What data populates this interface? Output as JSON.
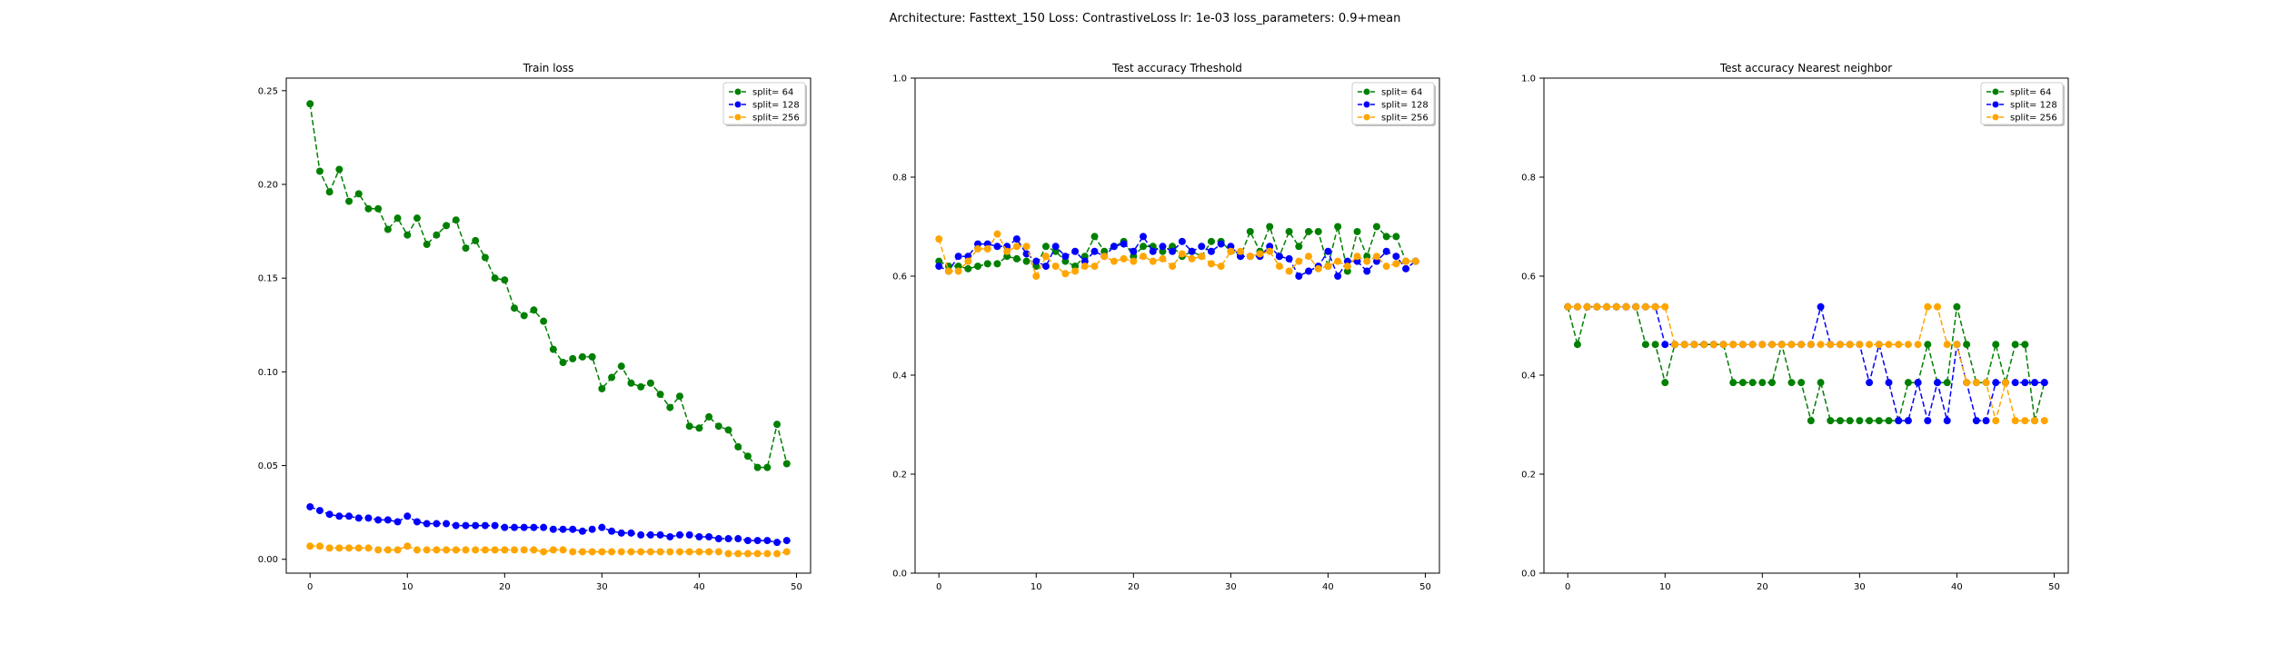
{
  "suptitle": "Architecture: Fasttext_150 Loss: ContrastiveLoss lr: 1e-03 loss_parameters: 0.9+mean",
  "colors": {
    "split64": "#008000",
    "split128": "#0000ff",
    "split256": "#ffa500"
  },
  "chart_data": [
    {
      "type": "line",
      "title": "Train loss",
      "xlabel": "",
      "ylabel": "",
      "xlim": [
        -2.45,
        51.45
      ],
      "ylim": [
        -0.0074,
        0.2567
      ],
      "xticks": [
        0,
        10,
        20,
        30,
        40,
        50
      ],
      "xtick_labels": [
        "0",
        "10",
        "20",
        "30",
        "40",
        "50"
      ],
      "yticks": [
        0.0,
        0.05,
        0.1,
        0.15,
        0.2,
        0.25
      ],
      "ytick_labels": [
        "0.00",
        "0.05",
        "0.10",
        "0.15",
        "0.20",
        "0.25"
      ],
      "legend_position": "top-right",
      "grid": false,
      "x": [
        0,
        1,
        2,
        3,
        4,
        5,
        6,
        7,
        8,
        9,
        10,
        11,
        12,
        13,
        14,
        15,
        16,
        17,
        18,
        19,
        20,
        21,
        22,
        23,
        24,
        25,
        26,
        27,
        28,
        29,
        30,
        31,
        32,
        33,
        34,
        35,
        36,
        37,
        38,
        39,
        40,
        41,
        42,
        43,
        44,
        45,
        46,
        47,
        48,
        49
      ],
      "series": [
        {
          "name": "split= 64",
          "color": "#008000",
          "values": [
            0.243,
            0.207,
            0.196,
            0.208,
            0.191,
            0.195,
            0.187,
            0.187,
            0.176,
            0.182,
            0.173,
            0.182,
            0.168,
            0.173,
            0.178,
            0.181,
            0.166,
            0.17,
            0.161,
            0.15,
            0.149,
            0.134,
            0.13,
            0.133,
            0.127,
            0.112,
            0.105,
            0.107,
            0.108,
            0.108,
            0.091,
            0.097,
            0.103,
            0.094,
            0.092,
            0.094,
            0.088,
            0.081,
            0.087,
            0.071,
            0.07,
            0.076,
            0.071,
            0.069,
            0.06,
            0.055,
            0.049,
            0.049,
            0.072,
            0.051
          ]
        },
        {
          "name": "split= 128",
          "color": "#0000ff",
          "values": [
            0.028,
            0.026,
            0.024,
            0.023,
            0.023,
            0.022,
            0.022,
            0.021,
            0.021,
            0.02,
            0.023,
            0.02,
            0.019,
            0.019,
            0.019,
            0.018,
            0.018,
            0.018,
            0.018,
            0.018,
            0.017,
            0.017,
            0.017,
            0.017,
            0.017,
            0.016,
            0.016,
            0.016,
            0.015,
            0.016,
            0.017,
            0.015,
            0.014,
            0.014,
            0.013,
            0.013,
            0.013,
            0.012,
            0.013,
            0.013,
            0.012,
            0.012,
            0.011,
            0.011,
            0.011,
            0.01,
            0.01,
            0.01,
            0.009,
            0.01
          ]
        },
        {
          "name": "split= 256",
          "color": "#ffa500",
          "values": [
            0.007,
            0.007,
            0.006,
            0.006,
            0.006,
            0.006,
            0.006,
            0.005,
            0.005,
            0.005,
            0.007,
            0.005,
            0.005,
            0.005,
            0.005,
            0.005,
            0.005,
            0.005,
            0.005,
            0.005,
            0.005,
            0.005,
            0.005,
            0.005,
            0.004,
            0.005,
            0.005,
            0.004,
            0.004,
            0.004,
            0.004,
            0.004,
            0.004,
            0.004,
            0.004,
            0.004,
            0.004,
            0.004,
            0.004,
            0.004,
            0.004,
            0.004,
            0.004,
            0.003,
            0.003,
            0.003,
            0.003,
            0.003,
            0.003,
            0.004
          ]
        }
      ]
    },
    {
      "type": "line",
      "title": "Test accuracy Trheshold",
      "xlabel": "",
      "ylabel": "",
      "xlim": [
        -2.45,
        51.45
      ],
      "ylim": [
        0.0,
        1.0
      ],
      "xticks": [
        0,
        10,
        20,
        30,
        40,
        50
      ],
      "xtick_labels": [
        "0",
        "10",
        "20",
        "30",
        "40",
        "50"
      ],
      "yticks": [
        0.0,
        0.2,
        0.4,
        0.6,
        0.8,
        1.0
      ],
      "ytick_labels": [
        "0.0",
        "0.2",
        "0.4",
        "0.6",
        "0.8",
        "1.0"
      ],
      "legend_position": "top-right",
      "grid": false,
      "x": [
        0,
        1,
        2,
        3,
        4,
        5,
        6,
        7,
        8,
        9,
        10,
        11,
        12,
        13,
        14,
        15,
        16,
        17,
        18,
        19,
        20,
        21,
        22,
        23,
        24,
        25,
        26,
        27,
        28,
        29,
        30,
        31,
        32,
        33,
        34,
        35,
        36,
        37,
        38,
        39,
        40,
        41,
        42,
        43,
        44,
        45,
        46,
        47,
        48,
        49
      ],
      "series": [
        {
          "name": "split= 64",
          "color": "#008000",
          "values": [
            0.63,
            0.62,
            0.62,
            0.615,
            0.62,
            0.625,
            0.625,
            0.64,
            0.635,
            0.63,
            0.62,
            0.66,
            0.65,
            0.63,
            0.62,
            0.64,
            0.68,
            0.65,
            0.66,
            0.67,
            0.64,
            0.66,
            0.66,
            0.65,
            0.66,
            0.64,
            0.65,
            0.64,
            0.67,
            0.67,
            0.65,
            0.64,
            0.69,
            0.65,
            0.7,
            0.64,
            0.69,
            0.66,
            0.69,
            0.69,
            0.62,
            0.7,
            0.61,
            0.69,
            0.64,
            0.7,
            0.68,
            0.68,
            0.63,
            0.63
          ]
        },
        {
          "name": "split= 128",
          "color": "#0000ff",
          "values": [
            0.62,
            0.61,
            0.64,
            0.64,
            0.665,
            0.665,
            0.66,
            0.66,
            0.675,
            0.645,
            0.63,
            0.62,
            0.66,
            0.64,
            0.65,
            0.63,
            0.65,
            0.64,
            0.66,
            0.665,
            0.65,
            0.68,
            0.65,
            0.66,
            0.65,
            0.67,
            0.65,
            0.66,
            0.65,
            0.665,
            0.66,
            0.64,
            0.64,
            0.64,
            0.66,
            0.64,
            0.635,
            0.6,
            0.61,
            0.62,
            0.65,
            0.6,
            0.63,
            0.63,
            0.61,
            0.63,
            0.65,
            0.64,
            0.615,
            0.63
          ]
        },
        {
          "name": "split= 256",
          "color": "#ffa500",
          "values": [
            0.675,
            0.61,
            0.61,
            0.63,
            0.655,
            0.655,
            0.685,
            0.65,
            0.66,
            0.66,
            0.6,
            0.64,
            0.62,
            0.605,
            0.61,
            0.62,
            0.62,
            0.64,
            0.63,
            0.635,
            0.63,
            0.64,
            0.63,
            0.635,
            0.62,
            0.645,
            0.635,
            0.64,
            0.625,
            0.62,
            0.65,
            0.65,
            0.64,
            0.645,
            0.65,
            0.62,
            0.61,
            0.63,
            0.64,
            0.615,
            0.62,
            0.63,
            0.62,
            0.64,
            0.63,
            0.64,
            0.62,
            0.625,
            0.63,
            0.63
          ]
        }
      ]
    },
    {
      "type": "line",
      "title": "Test accuracy Nearest neighbor",
      "xlabel": "",
      "ylabel": "",
      "xlim": [
        -2.45,
        51.45
      ],
      "ylim": [
        0.0,
        1.0
      ],
      "xticks": [
        0,
        10,
        20,
        30,
        40,
        50
      ],
      "xtick_labels": [
        "0",
        "10",
        "20",
        "30",
        "40",
        "50"
      ],
      "yticks": [
        0.0,
        0.2,
        0.4,
        0.6,
        0.8,
        1.0
      ],
      "ytick_labels": [
        "0.0",
        "0.2",
        "0.4",
        "0.6",
        "0.8",
        "1.0"
      ],
      "legend_position": "top-right",
      "grid": false,
      "x": [
        0,
        1,
        2,
        3,
        4,
        5,
        6,
        7,
        8,
        9,
        10,
        11,
        12,
        13,
        14,
        15,
        16,
        17,
        18,
        19,
        20,
        21,
        22,
        23,
        24,
        25,
        26,
        27,
        28,
        29,
        30,
        31,
        32,
        33,
        34,
        35,
        36,
        37,
        38,
        39,
        40,
        41,
        42,
        43,
        44,
        45,
        46,
        47,
        48,
        49
      ],
      "series": [
        {
          "name": "split= 64",
          "color": "#008000",
          "values": [
            0.538,
            0.462,
            0.538,
            0.538,
            0.538,
            0.538,
            0.538,
            0.538,
            0.462,
            0.462,
            0.385,
            0.462,
            0.462,
            0.462,
            0.462,
            0.462,
            0.462,
            0.385,
            0.385,
            0.385,
            0.385,
            0.385,
            0.462,
            0.385,
            0.385,
            0.308,
            0.385,
            0.308,
            0.308,
            0.308,
            0.308,
            0.308,
            0.308,
            0.308,
            0.308,
            0.385,
            0.385,
            0.462,
            0.385,
            0.385,
            0.538,
            0.462,
            0.385,
            0.385,
            0.462,
            0.385,
            0.462,
            0.462,
            0.308,
            0.385
          ]
        },
        {
          "name": "split= 128",
          "color": "#0000ff",
          "values": [
            0.538,
            0.538,
            0.538,
            0.538,
            0.538,
            0.538,
            0.538,
            0.538,
            0.538,
            0.538,
            0.462,
            0.462,
            0.462,
            0.462,
            0.462,
            0.462,
            0.462,
            0.462,
            0.462,
            0.462,
            0.462,
            0.462,
            0.462,
            0.462,
            0.462,
            0.462,
            0.538,
            0.462,
            0.462,
            0.462,
            0.462,
            0.385,
            0.462,
            0.385,
            0.308,
            0.308,
            0.385,
            0.308,
            0.385,
            0.308,
            0.462,
            0.385,
            0.308,
            0.308,
            0.385,
            0.385,
            0.385,
            0.385,
            0.385,
            0.385
          ]
        },
        {
          "name": "split= 256",
          "color": "#ffa500",
          "values": [
            0.538,
            0.538,
            0.538,
            0.538,
            0.538,
            0.538,
            0.538,
            0.538,
            0.538,
            0.538,
            0.538,
            0.462,
            0.462,
            0.462,
            0.462,
            0.462,
            0.462,
            0.462,
            0.462,
            0.462,
            0.462,
            0.462,
            0.462,
            0.462,
            0.462,
            0.462,
            0.462,
            0.462,
            0.462,
            0.462,
            0.462,
            0.462,
            0.462,
            0.462,
            0.462,
            0.462,
            0.462,
            0.538,
            0.538,
            0.462,
            0.462,
            0.385,
            0.385,
            0.385,
            0.308,
            0.385,
            0.308,
            0.308,
            0.308,
            0.308
          ]
        }
      ]
    }
  ]
}
